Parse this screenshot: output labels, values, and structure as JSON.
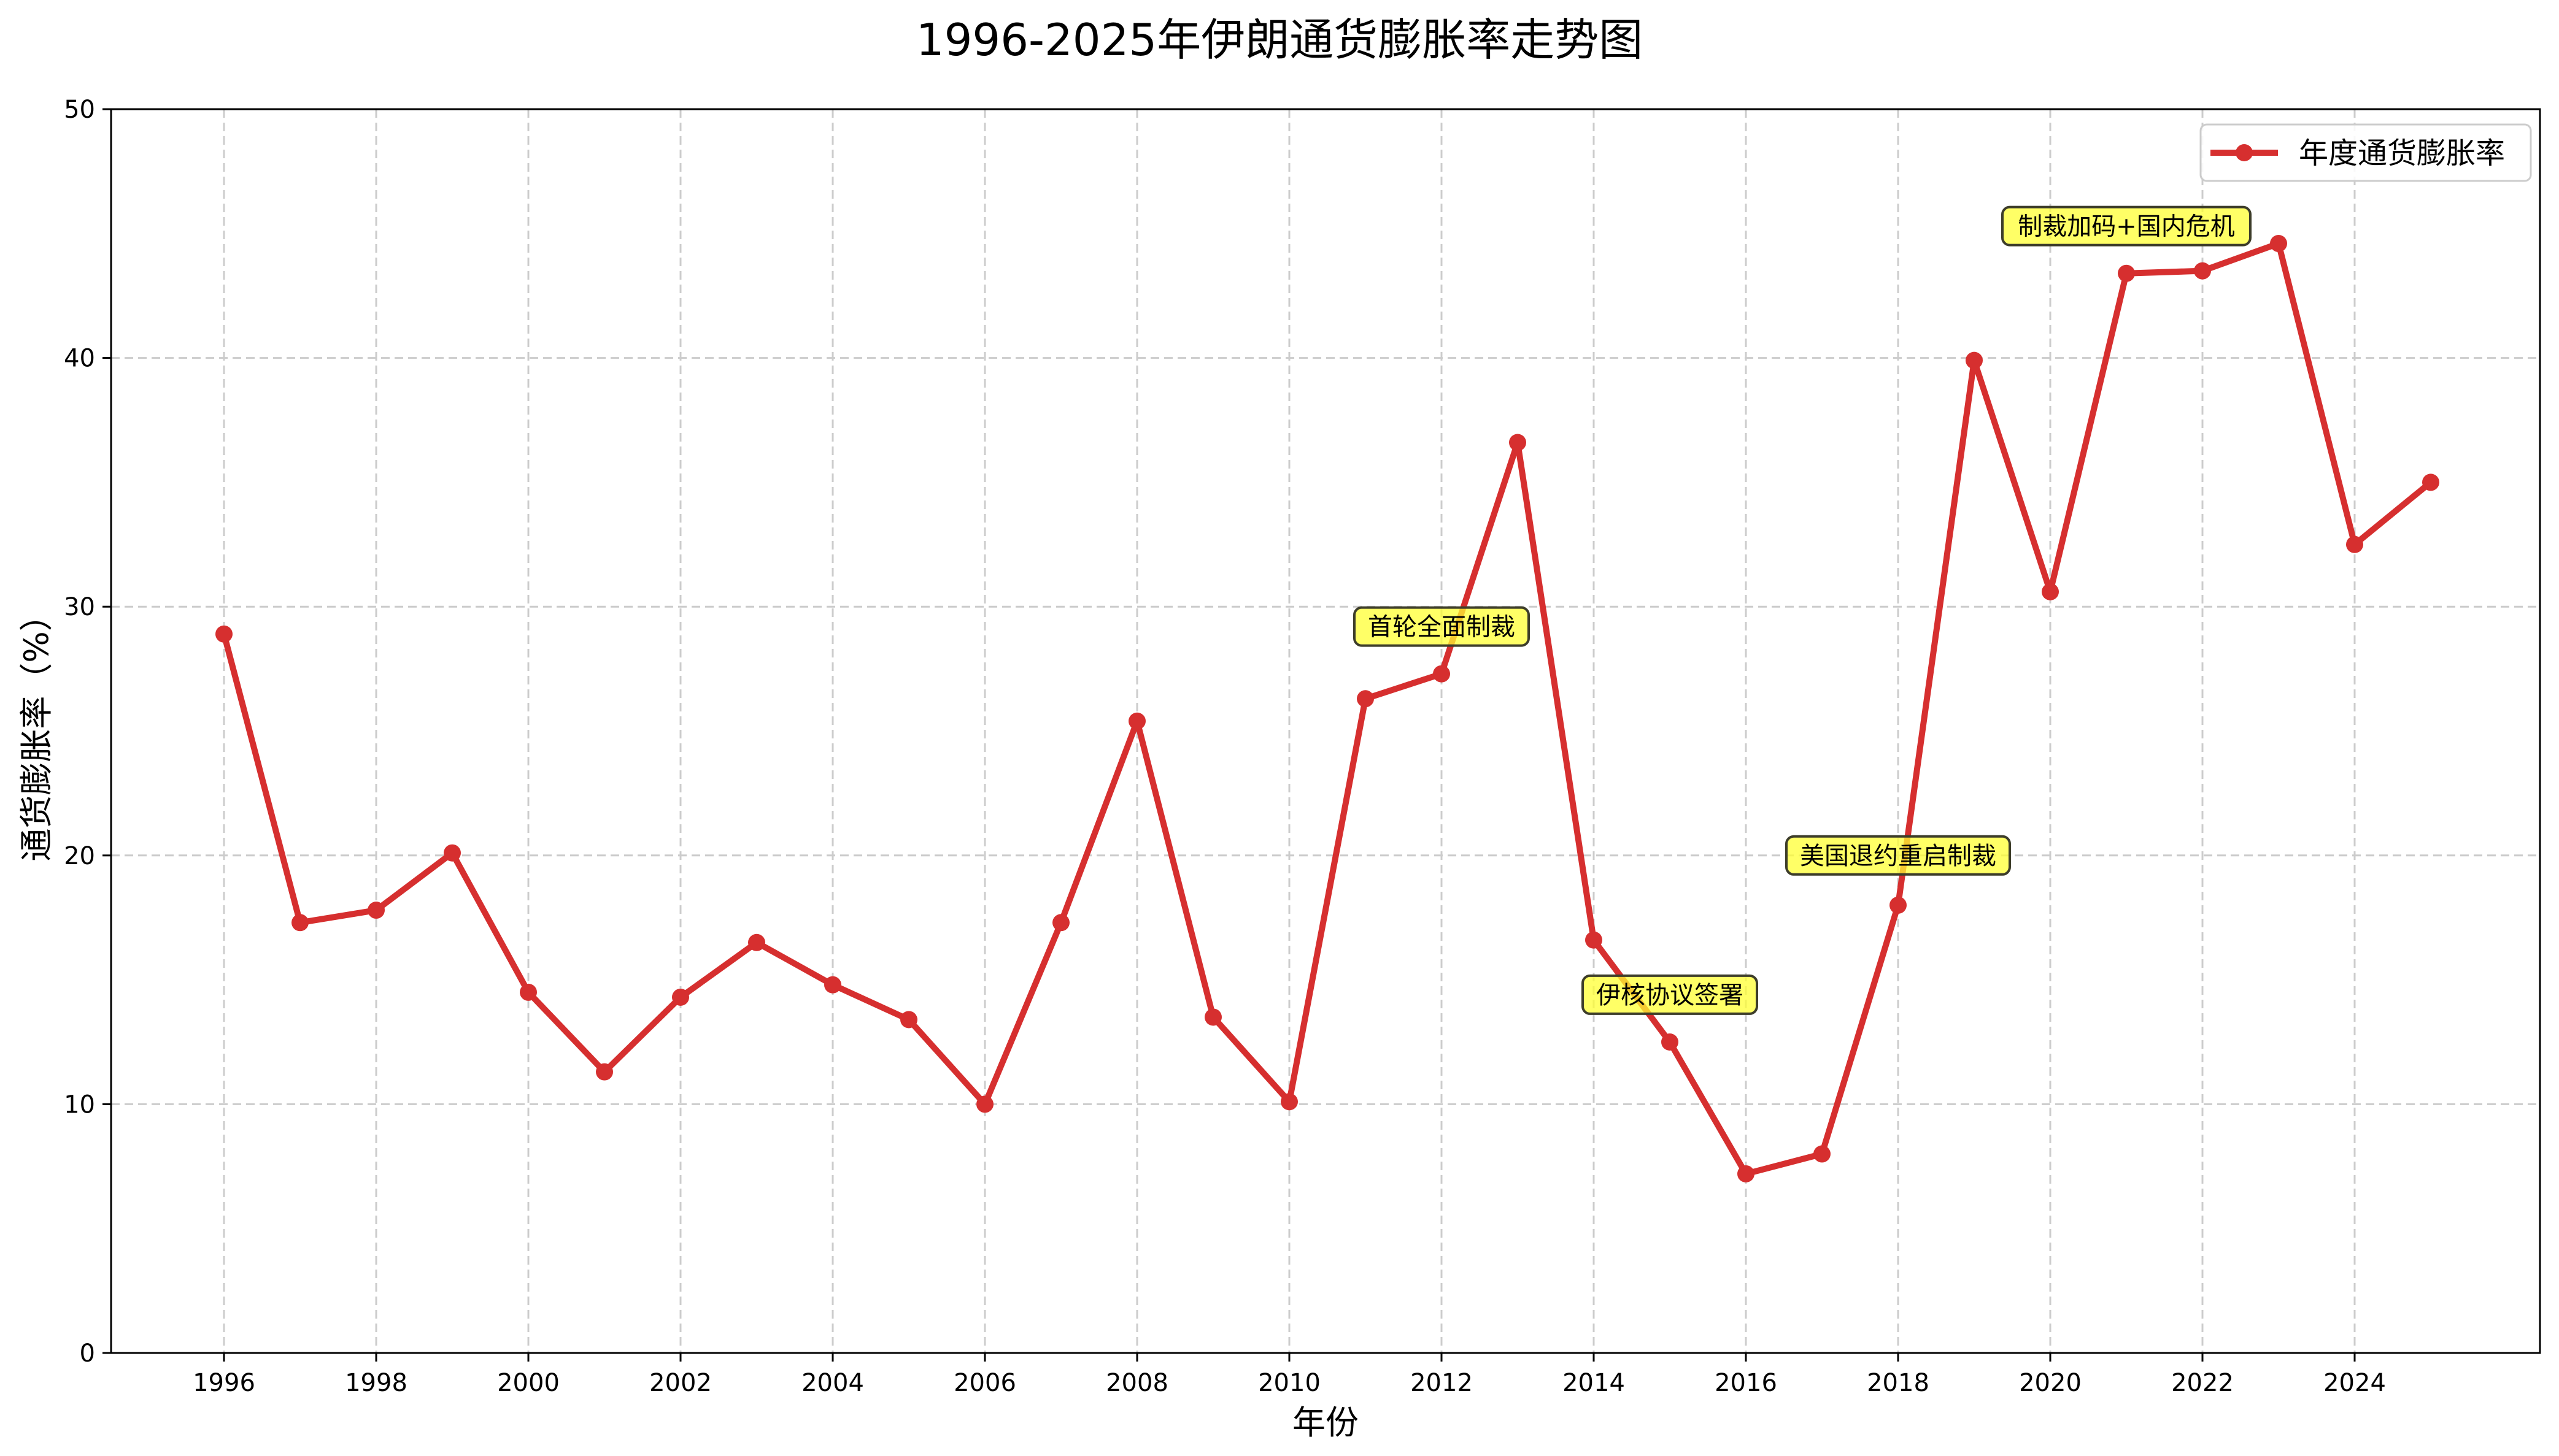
{
  "chart_data": {
    "type": "line",
    "title": "1996-2025年伊朗通货膨胀率走势图",
    "xlabel": "年份",
    "ylabel": "通货膨胀率（%）",
    "ylim": [
      0,
      50
    ],
    "xlim": [
      1994.5,
      2026.3
    ],
    "grid": true,
    "legend_position": "upper right",
    "x_ticks": [
      1996,
      1998,
      2000,
      2002,
      2004,
      2006,
      2008,
      2010,
      2012,
      2014,
      2016,
      2018,
      2020,
      2022,
      2024
    ],
    "y_ticks": [
      0,
      10,
      20,
      30,
      40,
      50
    ],
    "x": [
      1996,
      1997,
      1998,
      1999,
      2000,
      2001,
      2002,
      2003,
      2004,
      2005,
      2006,
      2007,
      2008,
      2009,
      2010,
      2011,
      2012,
      2013,
      2014,
      2015,
      2016,
      2017,
      2018,
      2019,
      2020,
      2021,
      2022,
      2023,
      2024,
      2025
    ],
    "series": [
      {
        "name": "年度通货膨胀率",
        "color": "#d62f2f",
        "marker": "circle",
        "values": [
          28.9,
          17.3,
          17.8,
          20.1,
          14.5,
          11.3,
          14.3,
          16.5,
          14.8,
          13.4,
          10.0,
          17.3,
          25.4,
          13.5,
          10.1,
          26.3,
          27.3,
          36.6,
          16.6,
          12.5,
          7.2,
          8.0,
          18.0,
          39.9,
          30.6,
          43.4,
          43.5,
          44.6,
          32.5,
          35.0
        ]
      }
    ],
    "annotations": [
      {
        "text": "首轮全面制裁",
        "x": 2012,
        "y": 29.2
      },
      {
        "text": "伊核协议签署",
        "x": 2015,
        "y": 14.4
      },
      {
        "text": "美国退约重启制裁",
        "x": 2018,
        "y": 20.0
      },
      {
        "text": "制裁加码+国内危机",
        "x": 2021,
        "y": 45.3
      }
    ]
  },
  "colors": {
    "line": "#d62f2f",
    "annotation_fill": "#ffff33",
    "annotation_border": "#3d3d2a",
    "grid": "#cccccc",
    "legend_border": "#cccccc"
  }
}
